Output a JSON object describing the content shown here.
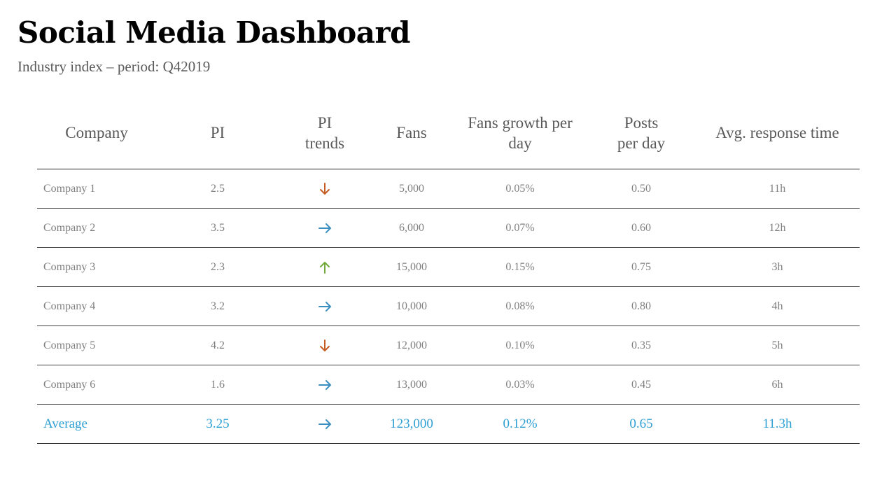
{
  "header": {
    "title": "Social Media Dashboard",
    "subtitle": "Industry index – period: Q42019"
  },
  "colors": {
    "down": "#c65b24",
    "flat": "#3a8fc0",
    "up": "#70a83a",
    "average": "#2e9fd3"
  },
  "table": {
    "columns": [
      "Company",
      "PI",
      "PI trends",
      "Fans",
      "Fans growth per day",
      "Posts per day",
      "Avg. response time"
    ],
    "rows": [
      {
        "company": "Company 1",
        "pi": "2.5",
        "trend": "down",
        "fans": "5,000",
        "growth": "0.05%",
        "posts": "0.50",
        "response": "11h"
      },
      {
        "company": "Company 2",
        "pi": "3.5",
        "trend": "flat",
        "fans": "6,000",
        "growth": "0.07%",
        "posts": "0.60",
        "response": "12h"
      },
      {
        "company": "Company 3",
        "pi": "2.3",
        "trend": "up",
        "fans": "15,000",
        "growth": "0.15%",
        "posts": "0.75",
        "response": "3h"
      },
      {
        "company": "Company 4",
        "pi": "3.2",
        "trend": "flat",
        "fans": "10,000",
        "growth": "0.08%",
        "posts": "0.80",
        "response": "4h"
      },
      {
        "company": "Company 5",
        "pi": "4.2",
        "trend": "down",
        "fans": "12,000",
        "growth": "0.10%",
        "posts": "0.35",
        "response": "5h"
      },
      {
        "company": "Company 6",
        "pi": "1.6",
        "trend": "flat",
        "fans": "13,000",
        "growth": "0.03%",
        "posts": "0.45",
        "response": "6h"
      }
    ],
    "average": {
      "label": "Average",
      "pi": "3.25",
      "trend": "flat",
      "fans": "123,000",
      "growth": "0.12%",
      "posts": "0.65",
      "response": "11.3h"
    }
  }
}
